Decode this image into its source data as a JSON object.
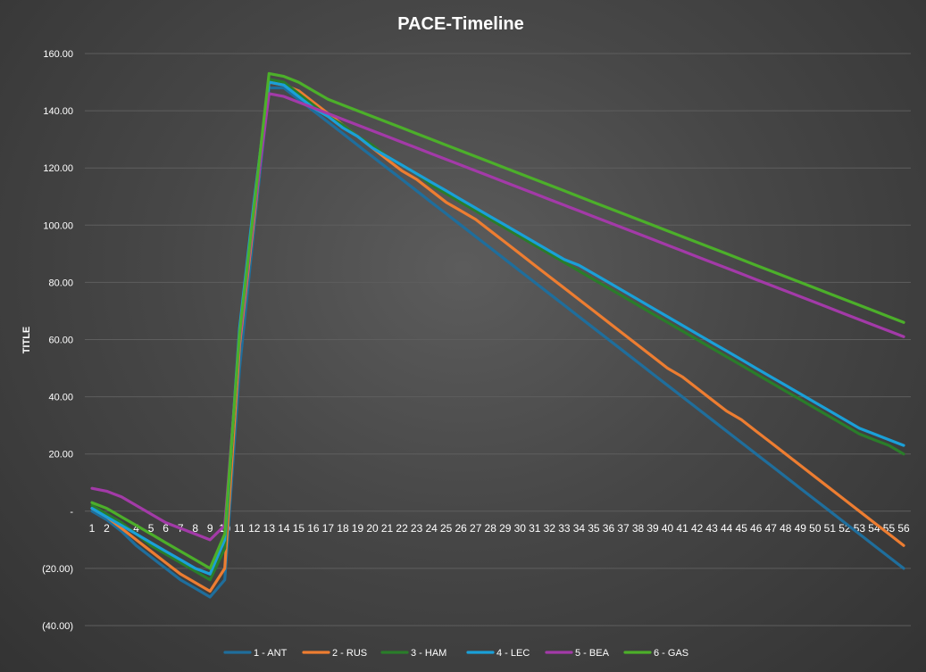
{
  "chart_data": {
    "type": "line",
    "title": "PACE-Timeline",
    "xlabel": "",
    "ylabel": "TITLE",
    "ylim": [
      -40,
      160
    ],
    "yticks": [
      160,
      140,
      120,
      100,
      80,
      60,
      40,
      20,
      0,
      -20,
      -40
    ],
    "ytick_labels": [
      "160.00",
      "140.00",
      "120.00",
      "100.00",
      "80.00",
      "60.00",
      "40.00",
      "20.00",
      "-",
      "(20.00)",
      "(40.00)"
    ],
    "categories": [
      1,
      2,
      3,
      4,
      5,
      6,
      7,
      8,
      9,
      10,
      11,
      12,
      13,
      14,
      15,
      16,
      17,
      18,
      19,
      20,
      21,
      22,
      23,
      24,
      25,
      26,
      27,
      28,
      29,
      30,
      31,
      32,
      33,
      34,
      35,
      36,
      37,
      38,
      39,
      40,
      41,
      42,
      43,
      44,
      45,
      46,
      47,
      48,
      49,
      50,
      51,
      52,
      53,
      54,
      55,
      56
    ],
    "grid": true,
    "legend": "bottom",
    "series": [
      {
        "name": "1 - ANT",
        "color": "#1f6e9c",
        "values": [
          0,
          -3,
          -7,
          -12,
          -16,
          -20,
          -24,
          -27,
          -30,
          -24,
          50,
          100,
          148,
          148,
          144,
          140,
          136,
          132,
          128,
          124,
          120,
          116,
          112,
          108,
          104,
          100,
          96,
          92,
          88,
          84,
          80,
          76,
          72,
          68,
          64,
          60,
          56,
          52,
          48,
          44,
          40,
          36,
          32,
          28,
          24,
          20,
          16,
          12,
          8,
          4,
          0,
          -4,
          -8,
          -12,
          -16,
          -20
        ]
      },
      {
        "name": "2 - RUS",
        "color": "#ed7d31",
        "values": [
          1,
          -2,
          -6,
          -10,
          -14,
          -18,
          -22,
          -25,
          -28,
          -20,
          58,
          103,
          150,
          149,
          147,
          143,
          139,
          135,
          131,
          127,
          123,
          119,
          116,
          112,
          108,
          105,
          102,
          98,
          94,
          90,
          86,
          82,
          78,
          74,
          70,
          66,
          62,
          58,
          54,
          50,
          47,
          43,
          39,
          35,
          32,
          28,
          24,
          20,
          16,
          12,
          8,
          4,
          0,
          -4,
          -8,
          -12
        ]
      },
      {
        "name": "3 - HAM",
        "color": "#2a7d2a",
        "values": [
          2,
          -1,
          -4,
          -8,
          -12,
          -15,
          -18,
          -21,
          -24,
          -13,
          63,
          108,
          151,
          150,
          146,
          142,
          138,
          135,
          131,
          128,
          124,
          121,
          118,
          114,
          111,
          108,
          105,
          102,
          99,
          96,
          93,
          90,
          87,
          84,
          81,
          78,
          75,
          72,
          69,
          66,
          63,
          60,
          57,
          54,
          51,
          48,
          45,
          42,
          39,
          36,
          33,
          30,
          27,
          25,
          23,
          20
        ]
      },
      {
        "name": "4 - LEC",
        "color": "#1aa0d8",
        "values": [
          1,
          -2,
          -5,
          -8,
          -11,
          -14,
          -17,
          -20,
          -22,
          -10,
          64,
          109,
          150,
          149,
          145,
          141,
          138,
          134,
          131,
          127,
          124,
          121,
          118,
          115,
          112,
          109,
          106,
          103,
          100,
          97,
          94,
          91,
          88,
          86,
          83,
          80,
          77,
          74,
          71,
          68,
          65,
          62,
          59,
          56,
          53,
          50,
          47,
          44,
          41,
          38,
          35,
          32,
          29,
          27,
          25,
          23
        ]
      },
      {
        "name": "5 - BEA",
        "color": "#a33aa8",
        "values": [
          8,
          7,
          5,
          2,
          -1,
          -4,
          -6,
          -8,
          -10,
          -5,
          60,
          105,
          146,
          145,
          143,
          141,
          139,
          137,
          135,
          133,
          131,
          129,
          127,
          125,
          123,
          121,
          119,
          117,
          115,
          113,
          111,
          109,
          107,
          105,
          103,
          101,
          99,
          97,
          95,
          93,
          91,
          89,
          87,
          85,
          83,
          81,
          79,
          77,
          75,
          73,
          71,
          69,
          67,
          65,
          63,
          61
        ]
      },
      {
        "name": "6 - GAS",
        "color": "#4caf2a",
        "values": [
          3,
          1,
          -2,
          -5,
          -8,
          -11,
          -14,
          -17,
          -20,
          -8,
          62,
          107,
          153,
          152,
          150,
          147,
          144,
          142,
          140,
          138,
          136,
          134,
          132,
          130,
          128,
          126,
          124,
          122,
          120,
          118,
          116,
          114,
          112,
          110,
          108,
          106,
          104,
          102,
          100,
          98,
          96,
          94,
          92,
          90,
          88,
          86,
          84,
          82,
          80,
          78,
          76,
          74,
          72,
          70,
          68,
          66
        ]
      }
    ]
  }
}
